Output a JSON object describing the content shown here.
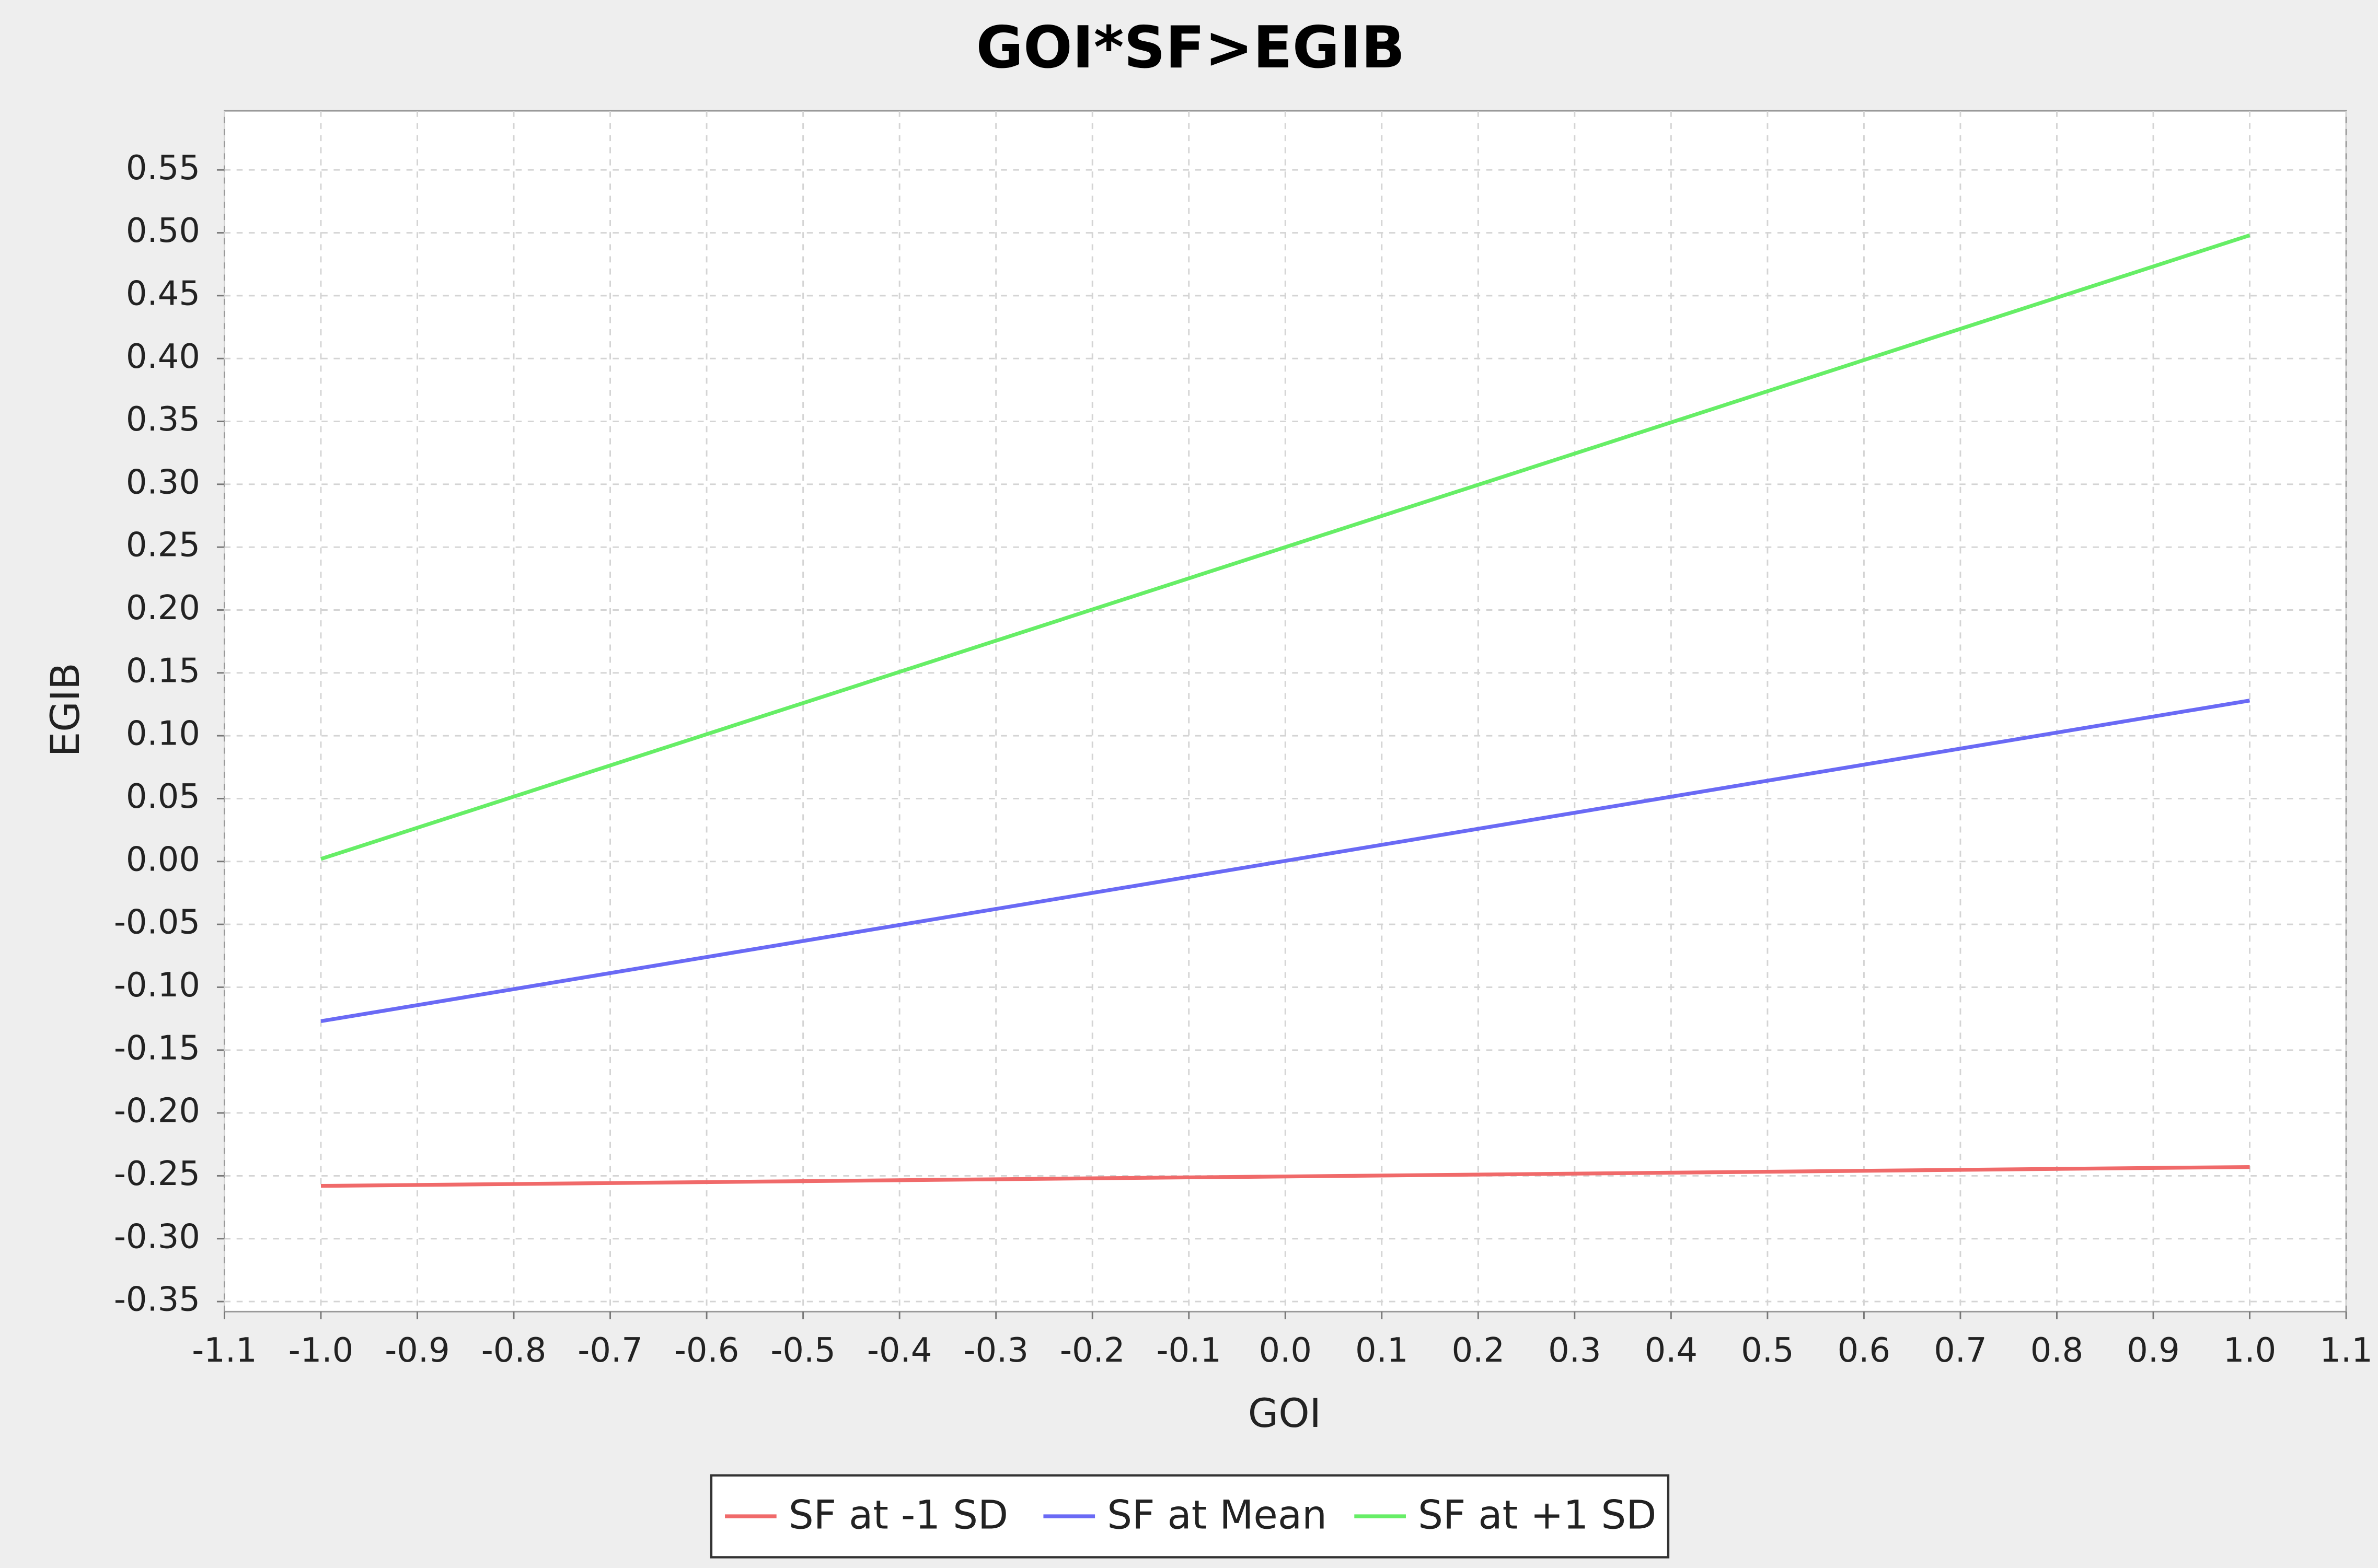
{
  "chart_data": {
    "type": "line",
    "title": "GOI*SF>EGIB",
    "x_label": "GOI",
    "y_label": "EGIB",
    "x": [
      -1,
      1
    ],
    "series": [
      {
        "name": "SF at -1 SD",
        "color": "#f06a6a",
        "values": [
          -0.258,
          -0.243
        ]
      },
      {
        "name": "SF at Mean",
        "color": "#6a6af5",
        "values": [
          -0.127,
          0.128
        ]
      },
      {
        "name": "SF at +1 SD",
        "color": "#66ee66",
        "values": [
          0.002,
          0.498
        ]
      }
    ],
    "xlim": [
      -1.1,
      1.1
    ],
    "xticks": [
      -1.1,
      {
        "value": -1,
        "label": "-1.0"
      },
      -0.9,
      -0.8,
      -0.7,
      -0.6,
      -0.5,
      -0.4,
      -0.3,
      -0.2,
      -0.1,
      {
        "value": 0,
        "label": "0.0"
      },
      0.1,
      0.2,
      0.3,
      0.4,
      0.5,
      0.6,
      0.7,
      0.8,
      0.9,
      {
        "value": 1,
        "label": "1.0"
      },
      1.1
    ],
    "ylim": [
      -0.358,
      0.597
    ],
    "yticks": [
      -0.35,
      {
        "value": -0.3,
        "label": "-0.30"
      },
      -0.25,
      {
        "value": -0.2,
        "label": "-0.20"
      },
      -0.15,
      {
        "value": -0.1,
        "label": "-0.10"
      },
      -0.05,
      {
        "value": 0,
        "label": "0.00"
      },
      0.05,
      {
        "value": 0.1,
        "label": "0.10"
      },
      0.15,
      {
        "value": 0.2,
        "label": "0.20"
      },
      0.25,
      {
        "value": 0.3,
        "label": "0.30"
      },
      0.35,
      {
        "value": 0.4,
        "label": "0.40"
      },
      0.45,
      {
        "value": 0.5,
        "label": "0.50"
      },
      0.55
    ],
    "grid": true,
    "legend": "bottom"
  }
}
